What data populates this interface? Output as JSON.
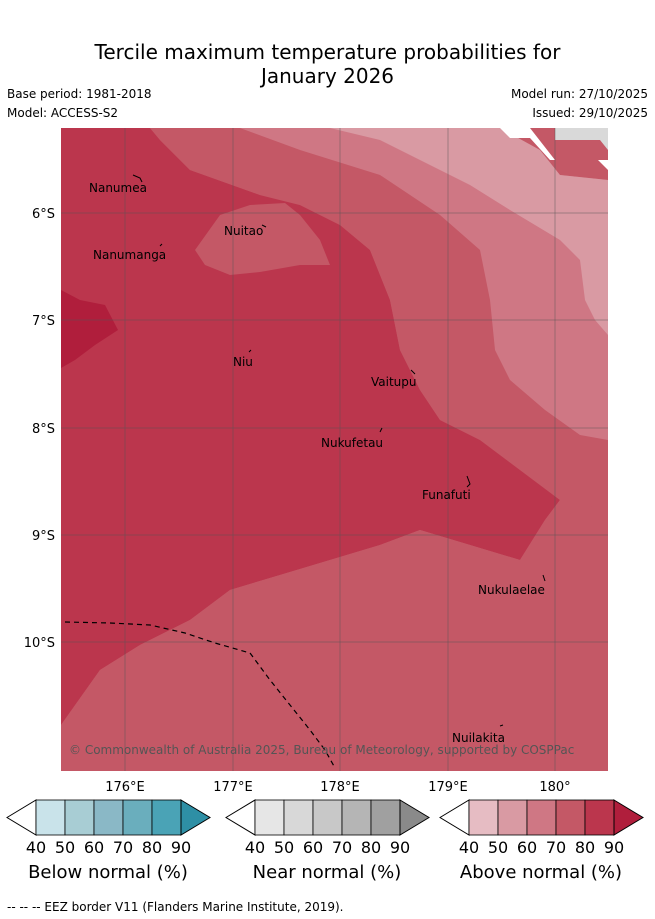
{
  "title_line1": "Tercile maximum temperature probabilities for",
  "title_line2": "January 2026",
  "base_period": "Base period: 1981-2018",
  "model": "Model: ACCESS-S2",
  "model_run": "Model run: 27/10/2025",
  "issued": "Issued: 29/10/2025",
  "copyright": "© Commonwealth of Australia 2025, Bureau of Meteorology, supported by COSPPac",
  "lon_labels": [
    "176°E",
    "177°E",
    "178°E",
    "179°E",
    "180°"
  ],
  "lat_labels": [
    "6°S",
    "7°S",
    "8°S",
    "9°S",
    "10°S"
  ],
  "places": [
    {
      "name": "Nanumea"
    },
    {
      "name": "Nuitao"
    },
    {
      "name": "Nanumanga"
    },
    {
      "name": "Niu"
    },
    {
      "name": "Vaitupu"
    },
    {
      "name": "Nukufetau"
    },
    {
      "name": "Funafuti"
    },
    {
      "name": "Nukulaelae"
    },
    {
      "name": "Nuilakita"
    }
  ],
  "colorbars": [
    {
      "title": "Below normal (%)",
      "colors": [
        "#ffffff",
        "#c9e3ea",
        "#a8cdd4",
        "#8ab8c6",
        "#6aaebd",
        "#4aa3b6",
        "#2e8fa5"
      ]
    },
    {
      "title": "Near normal (%)",
      "colors": [
        "#ffffff",
        "#e6e6e6",
        "#d8d8d8",
        "#c8c8c8",
        "#b5b5b5",
        "#a0a0a0",
        "#8a8a8a"
      ]
    },
    {
      "title": "Above normal (%)",
      "colors": [
        "#ffffff",
        "#e6bcc3",
        "#d99aa3",
        "#cf7784",
        "#c45866",
        "#bb364d",
        "#b01e3c"
      ]
    }
  ],
  "tick_values": [
    "40",
    "50",
    "60",
    "70",
    "80",
    "90"
  ],
  "footnote": "-- -- -- EEZ border V11 (Flanders Marine Institute, 2019).",
  "map_colors": {
    "above_90": "#b01e3c",
    "above_80": "#bb364d",
    "above_70": "#c45866",
    "above_60": "#cf7784",
    "above_50": "#d99aa3",
    "near_50": "#d9d9d9"
  }
}
